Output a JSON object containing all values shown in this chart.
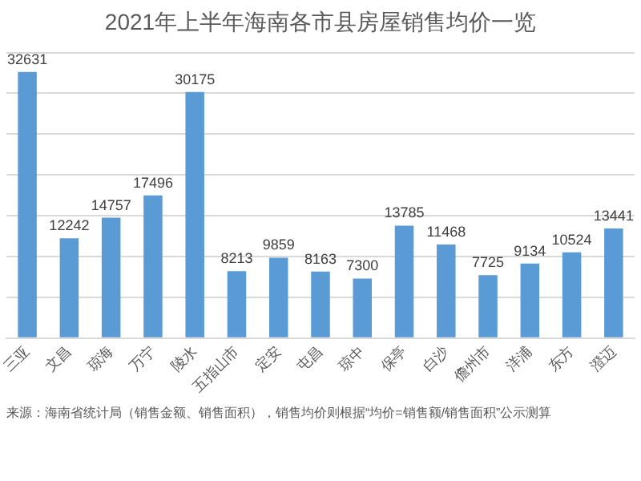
{
  "chart_data": {
    "type": "bar",
    "title": "2021年上半年海南各市县房屋销售均价一览",
    "categories": [
      "三亚",
      "文昌",
      "琼海",
      "万宁",
      "陵水",
      "五指山市",
      "定安",
      "屯昌",
      "琼中",
      "保亭",
      "白沙",
      "儋州市",
      "洋浦",
      "东方",
      "澄迈"
    ],
    "values": [
      32631,
      12242,
      14757,
      17496,
      30175,
      8213,
      9859,
      8163,
      7300,
      13785,
      11468,
      7725,
      9134,
      10524,
      13441
    ],
    "color": "#5b9bd5",
    "ylim": [
      0,
      35000
    ],
    "yticks": [
      0,
      5000,
      10000,
      15000,
      20000,
      25000,
      30000,
      35000
    ],
    "grid": "y",
    "tick_labels": "x",
    "data_labels": true,
    "annotations": [
      "来源：海南省统计局（销售金额、销售面积），销售均价则根据“均价=销售额/销售面积”公示测算"
    ]
  }
}
